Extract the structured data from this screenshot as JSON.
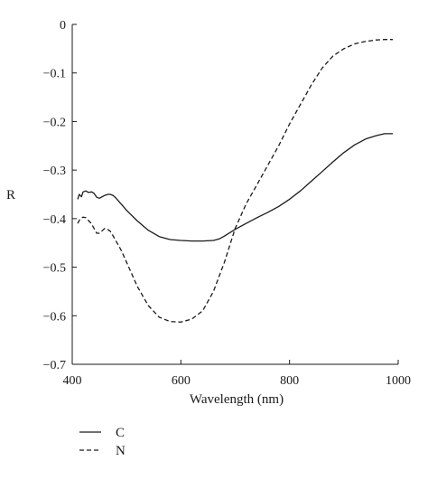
{
  "chart_data": {
    "type": "line",
    "title": "",
    "xlabel": "Wavelength (nm)",
    "ylabel": "R",
    "xlim": [
      400,
      1000
    ],
    "ylim": [
      -0.7,
      0
    ],
    "x_ticks": [
      400,
      600,
      800,
      1000
    ],
    "x_tick_labels": [
      "400",
      "600",
      "800",
      "1000"
    ],
    "y_ticks": [
      0,
      -0.1,
      -0.2,
      -0.3,
      -0.4,
      -0.5,
      -0.6,
      -0.7
    ],
    "y_tick_labels": [
      "0",
      "−0.1",
      "−0.2",
      "−0.3",
      "−0.4",
      "−0.5",
      "−0.6",
      "−0.7"
    ],
    "grid": false,
    "legend_position": "bottom-left",
    "series": [
      {
        "name": "C",
        "style": "solid",
        "color": "#1a1a1a",
        "x": [
          410,
          413,
          417,
          420,
          425,
          430,
          436,
          440,
          445,
          450,
          455,
          460,
          466,
          470,
          475,
          480,
          490,
          500,
          520,
          540,
          560,
          580,
          600,
          620,
          640,
          660,
          670,
          680,
          700,
          720,
          740,
          760,
          780,
          800,
          820,
          840,
          860,
          880,
          900,
          920,
          940,
          960,
          975,
          990
        ],
        "y": [
          -0.36,
          -0.35,
          -0.355,
          -0.345,
          -0.343,
          -0.346,
          -0.345,
          -0.348,
          -0.356,
          -0.358,
          -0.355,
          -0.352,
          -0.35,
          -0.35,
          -0.352,
          -0.357,
          -0.37,
          -0.383,
          -0.405,
          -0.424,
          -0.437,
          -0.443,
          -0.445,
          -0.446,
          -0.446,
          -0.445,
          -0.442,
          -0.436,
          -0.422,
          -0.41,
          -0.398,
          -0.387,
          -0.375,
          -0.36,
          -0.343,
          -0.323,
          -0.303,
          -0.283,
          -0.264,
          -0.248,
          -0.236,
          -0.229,
          -0.225,
          -0.225
        ]
      },
      {
        "name": "N",
        "style": "dashed",
        "color": "#1a1a1a",
        "x": [
          410,
          415,
          420,
          425,
          430,
          435,
          440,
          445,
          450,
          455,
          460,
          465,
          470,
          475,
          480,
          490,
          500,
          520,
          540,
          560,
          580,
          600,
          620,
          640,
          660,
          680,
          700,
          720,
          740,
          760,
          780,
          800,
          820,
          840,
          860,
          880,
          900,
          920,
          940,
          960,
          975,
          990
        ],
        "y": [
          -0.41,
          -0.4,
          -0.397,
          -0.398,
          -0.404,
          -0.41,
          -0.42,
          -0.43,
          -0.43,
          -0.425,
          -0.42,
          -0.422,
          -0.426,
          -0.435,
          -0.445,
          -0.465,
          -0.49,
          -0.54,
          -0.579,
          -0.603,
          -0.612,
          -0.613,
          -0.607,
          -0.59,
          -0.55,
          -0.49,
          -0.42,
          -0.37,
          -0.33,
          -0.29,
          -0.25,
          -0.205,
          -0.165,
          -0.125,
          -0.09,
          -0.065,
          -0.05,
          -0.04,
          -0.035,
          -0.032,
          -0.031,
          -0.031
        ]
      }
    ]
  }
}
